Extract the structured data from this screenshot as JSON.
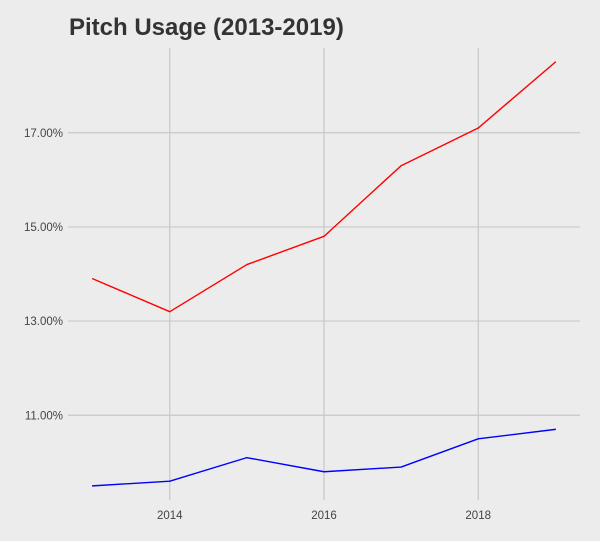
{
  "chart_data": {
    "type": "line",
    "title": "Pitch Usage (2013-2019)",
    "xlabel": "",
    "ylabel": "",
    "x": [
      2013,
      2014,
      2015,
      2016,
      2017,
      2018,
      2019
    ],
    "xlim": [
      2012.68,
      2019.32
    ],
    "ylim": [
      9.2,
      18.8
    ],
    "x_ticks": [
      {
        "value": 2014,
        "label": "2014"
      },
      {
        "value": 2016,
        "label": "2016"
      },
      {
        "value": 2018,
        "label": "2018"
      }
    ],
    "y_ticks": [
      {
        "value": 11,
        "label": "11.00%"
      },
      {
        "value": 13,
        "label": "13.00%"
      },
      {
        "value": 15,
        "label": "15.00%"
      },
      {
        "value": 17,
        "label": "17.00%"
      }
    ],
    "grid": true,
    "series": [
      {
        "color": "#ff0000",
        "values": [
          13.9,
          13.2,
          14.2,
          14.8,
          16.3,
          17.1,
          18.5
        ]
      },
      {
        "color": "#0000ff",
        "values": [
          9.5,
          9.6,
          10.1,
          9.8,
          9.9,
          10.5,
          10.7
        ]
      }
    ]
  }
}
